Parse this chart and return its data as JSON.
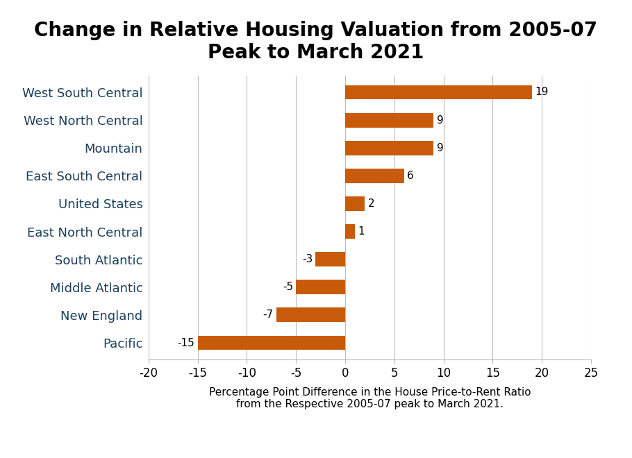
{
  "title": "Change in Relative Housing Valuation from 2005-07\nPeak to March 2021",
  "categories": [
    "Pacific",
    "New England",
    "Middle Atlantic",
    "South Atlantic",
    "East North Central",
    "United States",
    "East South Central",
    "Mountain",
    "West North Central",
    "West South Central"
  ],
  "values": [
    -15,
    -7,
    -5,
    -3,
    1,
    2,
    6,
    9,
    9,
    19
  ],
  "bar_color": "#C85B0A",
  "xlabel_line1": "Percentage Point Difference in the House Price-to-Rent Ratio",
  "xlabel_line2": "from the Respective 2005-07 peak to March 2021.",
  "xlim": [
    -20,
    25
  ],
  "xticks": [
    -20,
    -15,
    -10,
    -5,
    0,
    5,
    10,
    15,
    20,
    25
  ],
  "footer_bg": "#1B3F5C",
  "footer_text_color": "#FFFFFF",
  "grid_color": "#BBBBBB",
  "background_color": "#FFFFFF",
  "yticklabel_color": "#1B3F5C",
  "title_fontsize": 20,
  "label_fontsize": 13,
  "tick_fontsize": 12,
  "annotation_fontsize": 11
}
